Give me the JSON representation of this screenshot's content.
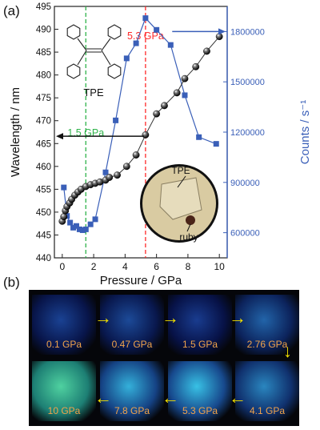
{
  "panel_a_label": "(a)",
  "panel_b_label": "(b)",
  "molecule_label": "TPE",
  "photo_labels": {
    "tpe": "TPE",
    "ruby": "ruby"
  },
  "colors": {
    "wavelength": "#111111",
    "counts": "#3a5fb8",
    "marker_5_3": "#ff2a2a",
    "marker_1_5": "#2fb34a",
    "photo_label": "#f0a34a",
    "arrow": "#f2e000"
  },
  "chart_data": {
    "type": "scatter",
    "xlabel": "Pressure / GPa",
    "ylabel_left": "Wavelength / nm",
    "ylabel_right": "Counts / s⁻¹",
    "xlim": [
      -0.5,
      10.5
    ],
    "ylim_left": [
      440,
      495
    ],
    "ylim_right": [
      450000,
      1950000
    ],
    "x_ticks": [
      0,
      2,
      4,
      6,
      8,
      10
    ],
    "y_ticks_left": [
      440,
      445,
      450,
      455,
      460,
      465,
      470,
      475,
      480,
      485,
      490,
      495
    ],
    "y_ticks_right": [
      600000,
      900000,
      1200000,
      1500000,
      1800000
    ],
    "vlines": [
      {
        "x": 1.5,
        "label": "1.5 GPa",
        "color": "#2fb34a"
      },
      {
        "x": 5.3,
        "label": "5.3 GPa",
        "color": "#ff2a2a"
      }
    ],
    "series": [
      {
        "axis": "left",
        "marker": "sphere",
        "color": "#111111",
        "x": [
          0.0,
          0.1,
          0.2,
          0.3,
          0.47,
          0.6,
          0.8,
          1.0,
          1.2,
          1.5,
          1.8,
          2.1,
          2.4,
          2.76,
          3.0,
          3.5,
          4.1,
          4.7,
          5.3,
          6.0,
          6.5,
          7.3,
          7.8,
          8.5,
          9.2,
          10.0
        ],
        "y": [
          448.0,
          449.0,
          450.3,
          451.2,
          452.0,
          452.8,
          453.7,
          454.4,
          455.0,
          455.6,
          456.0,
          456.3,
          456.6,
          457.0,
          457.6,
          458.1,
          460.0,
          462.5,
          466.9,
          471.5,
          473.3,
          476.1,
          479.2,
          481.8,
          485.2,
          488.4
        ]
      },
      {
        "axis": "right",
        "marker": "square",
        "color": "#3a5fb8",
        "x": [
          0.1,
          0.3,
          0.5,
          0.7,
          0.9,
          1.1,
          1.3,
          1.5,
          1.8,
          2.1,
          2.76,
          3.4,
          4.1,
          4.7,
          5.3,
          6.0,
          6.9,
          7.8,
          8.7,
          9.8
        ],
        "y": [
          870000,
          700000,
          660000,
          630000,
          640000,
          620000,
          615000,
          620000,
          650000,
          680000,
          960000,
          1270000,
          1640000,
          1730000,
          1880000,
          1810000,
          1720000,
          1420000,
          1170000,
          1130000
        ]
      }
    ]
  },
  "photos": {
    "row1": [
      {
        "label": "0.1 GPa",
        "level": 0.15
      },
      {
        "label": "0.47 GPa",
        "level": 0.2
      },
      {
        "label": "1.5 GPa",
        "level": 0.12
      },
      {
        "label": "2.76 GPa",
        "level": 0.35
      }
    ],
    "row2": [
      {
        "label": "10 GPa",
        "level": 0.85
      },
      {
        "label": "7.8 GPa",
        "level": 0.8
      },
      {
        "label": "5.3 GPa",
        "level": 0.9
      },
      {
        "label": "4.1 GPa",
        "level": 0.55
      }
    ]
  }
}
